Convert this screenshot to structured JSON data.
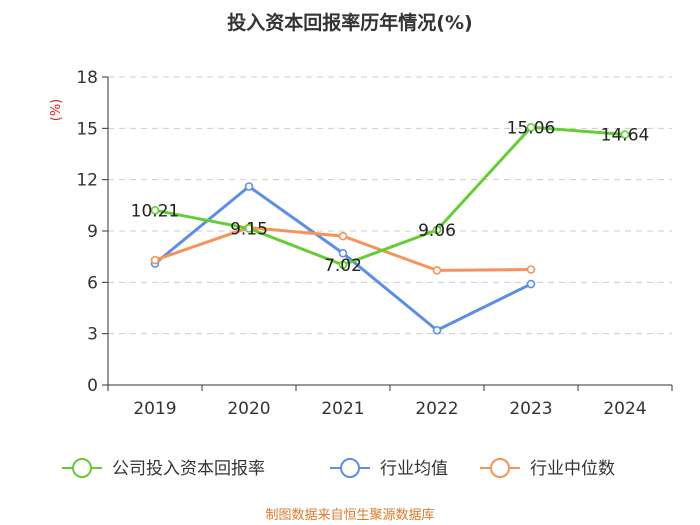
{
  "chart_data": {
    "type": "line",
    "title": "投入资本回报率历年情况(%)",
    "ylabel": "(%)",
    "categories": [
      "2019",
      "2020",
      "2021",
      "2022",
      "2023",
      "2024"
    ],
    "ylim": [
      0,
      18
    ],
    "yticks": [
      0,
      3,
      6,
      9,
      12,
      15,
      18
    ],
    "grid": true,
    "legend_position": "bottom",
    "series": [
      {
        "name": "公司投入资本回报率",
        "color": "#66cc33",
        "values": [
          10.21,
          9.15,
          7.02,
          9.06,
          15.06,
          14.64
        ],
        "labels": [
          "10.21",
          "9.15",
          "7.02",
          "9.06",
          "15.06",
          "14.64"
        ]
      },
      {
        "name": "行业均值",
        "color": "#5b8ee6",
        "values": [
          7.1,
          11.6,
          7.7,
          3.2,
          5.9,
          null
        ]
      },
      {
        "name": "行业中位数",
        "color": "#f4935a",
        "values": [
          7.3,
          9.2,
          8.7,
          6.7,
          6.75,
          null
        ]
      }
    ]
  },
  "source": "制图数据来自恒生聚源数据库"
}
